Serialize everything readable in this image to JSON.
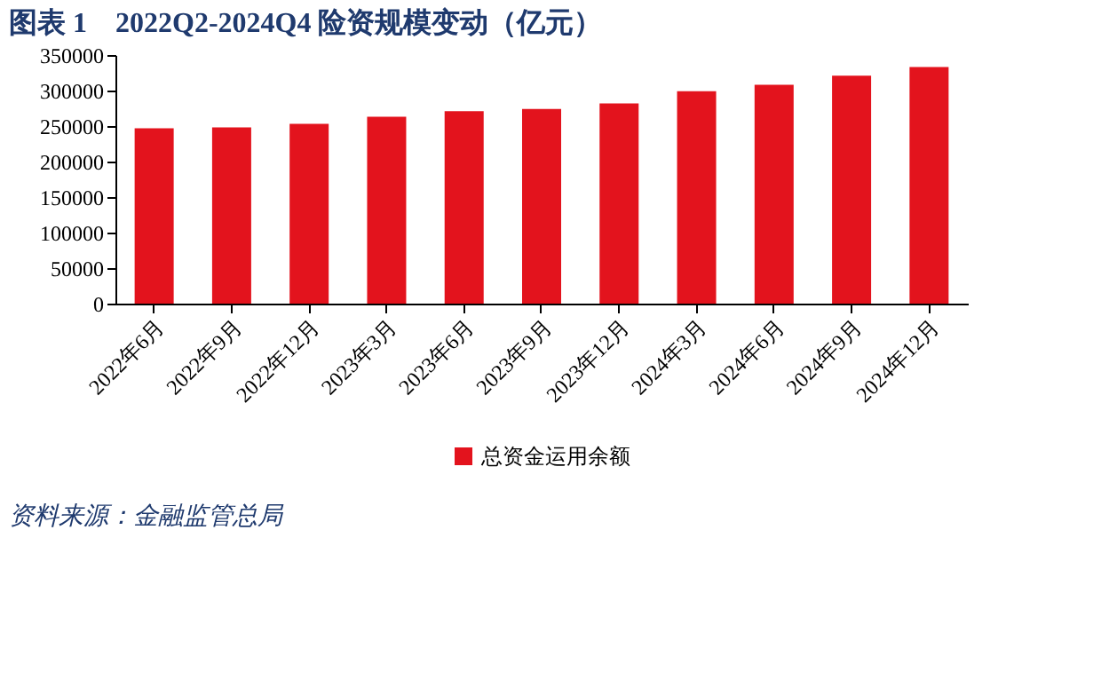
{
  "chart_data": {
    "type": "bar",
    "title": "图表 1　2022Q2-2024Q4 险资规模变动（亿元）",
    "categories": [
      "2022年6月",
      "2022年9月",
      "2022年12月",
      "2023年3月",
      "2023年6月",
      "2023年9月",
      "2023年12月",
      "2024年3月",
      "2024年6月",
      "2024年9月",
      "2024年12月"
    ],
    "series": [
      {
        "name": "总资金运用余额",
        "color": "#e3131d",
        "values": [
          247000,
          248000,
          253000,
          263000,
          271000,
          274000,
          282000,
          299000,
          308000,
          321000,
          333000
        ]
      }
    ],
    "ylim": [
      0,
      350000
    ],
    "yticks": [
      0,
      50000,
      100000,
      150000,
      200000,
      250000,
      300000,
      350000
    ],
    "grid": false,
    "legend": "bottom",
    "annotations": [
      "资料来源：金融监管总局"
    ]
  }
}
